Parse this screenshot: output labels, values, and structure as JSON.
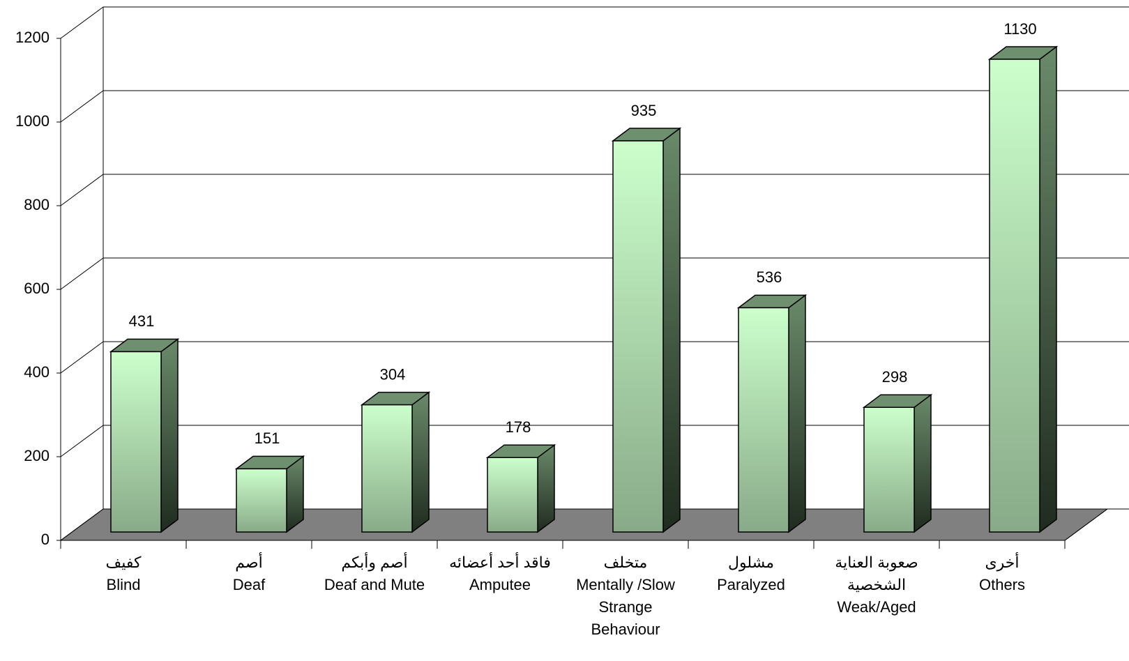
{
  "chart_data": {
    "type": "bar3d",
    "categories": [
      [
        "كفيف",
        "Blind"
      ],
      [
        "أصم",
        "Deaf"
      ],
      [
        "أصم وأبكم",
        "Deaf and Mute"
      ],
      [
        "فاقد أحد أعضائه",
        "Amputee"
      ],
      [
        "متخلف",
        "Mentally /Slow",
        "Strange",
        "Behaviour"
      ],
      [
        "مشلول",
        "Paralyzed"
      ],
      [
        "صعوبة العناية",
        "الشخصية",
        "Weak/Aged"
      ],
      [
        "أخرى",
        "Others"
      ]
    ],
    "values": [
      431,
      151,
      304,
      178,
      935,
      536,
      298,
      1130
    ],
    "color": "#ccffcc",
    "ylim": [
      0,
      1200
    ],
    "yticks": [
      0,
      200,
      400,
      600,
      800,
      1000,
      1200
    ],
    "grid": true
  }
}
